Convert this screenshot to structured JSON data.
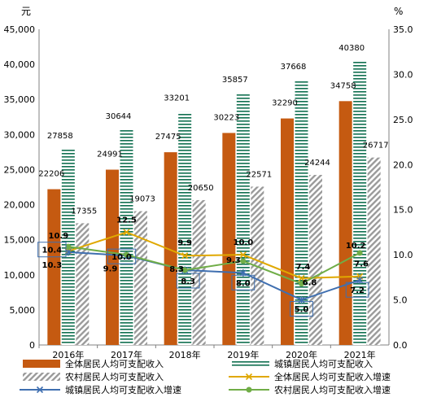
{
  "chart_data": {
    "type": "bar",
    "left_unit": "元",
    "right_unit": "%",
    "categories": [
      "2016年",
      "2017年",
      "2018年",
      "2019年",
      "2020年",
      "2021年"
    ],
    "y_left": {
      "min": 0,
      "max": 45000,
      "step": 5000,
      "tick_labels": [
        "0",
        "5,000",
        "10,000",
        "15,000",
        "20,000",
        "25,000",
        "30,000",
        "35,000",
        "40,000",
        "45,000"
      ]
    },
    "y_right": {
      "min": 0,
      "max": 35,
      "step": 5,
      "tick_labels": [
        "0.0",
        "5.0",
        "10.0",
        "15.0",
        "20.0",
        "25.0",
        "30.0",
        "35.0"
      ]
    },
    "bars": [
      {
        "name": "全体居民人均可支配收入",
        "color": "#c55a11",
        "pattern": "solid",
        "values": [
          22206,
          24991,
          27475,
          30223,
          32290,
          34758
        ],
        "labels": [
          "22206",
          "24991",
          "27475",
          "30223",
          "32290",
          "34758"
        ]
      },
      {
        "name": "城镇居民人均可支配收入",
        "color": "#107050",
        "pattern": "horizontal-lines",
        "values": [
          27858,
          30644,
          33201,
          35857,
          37668,
          40380
        ],
        "labels": [
          "27858",
          "30644",
          "33201",
          "35857",
          "37668",
          "40380"
        ]
      },
      {
        "name": "农村居民人均可支配收入",
        "color": "#9a9a9a",
        "pattern": "diagonal-stripes",
        "values": [
          17355,
          19073,
          20650,
          22571,
          24244,
          26717
        ],
        "labels": [
          "17355",
          "19073",
          "20650",
          "22571",
          "24244",
          "26717"
        ]
      }
    ],
    "lines": [
      {
        "name": "全体居民人均可支配收入增速",
        "color": "#e0a800",
        "marker": "x",
        "values": [
          10.4,
          12.5,
          9.9,
          10.0,
          7.4,
          7.6
        ],
        "labels": [
          "10.4",
          "12.5",
          "9.9",
          "10.0",
          "7.4",
          "7.6"
        ]
      },
      {
        "name": "城镇居民人均可支配收入增速",
        "color": "#3f6fb0",
        "marker": "star",
        "values": [
          10.3,
          9.9,
          8.3,
          8.0,
          5.0,
          7.2
        ],
        "labels": [
          "10.3",
          "9.9",
          "8.3",
          "8.0",
          "5.0",
          "7.2"
        ]
      },
      {
        "name": "农村居民人均可支配收入增速",
        "color": "#70ad47",
        "marker": "circle",
        "values": [
          10.9,
          10.0,
          8.3,
          9.3,
          6.8,
          10.2
        ],
        "labels": [
          "10.9",
          "10.0",
          "8.3",
          "9.3",
          "6.8",
          "10.2"
        ]
      }
    ],
    "boxed_labels": [
      "10.4",
      "10.0",
      "8.3",
      "8.0",
      "5.0",
      "7.2"
    ],
    "legend": {
      "position": "bottom",
      "columns": 2
    }
  }
}
